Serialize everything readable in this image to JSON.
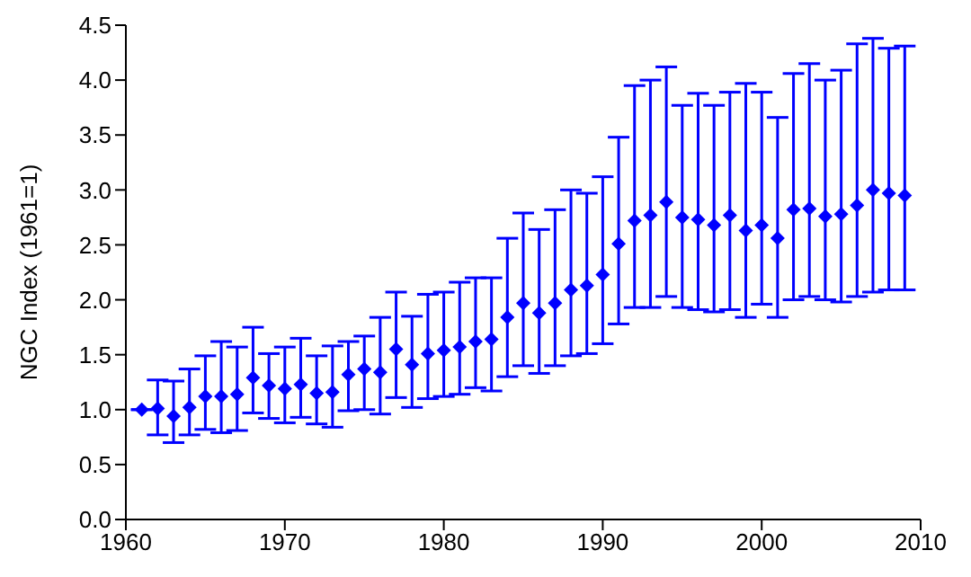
{
  "chart_data": {
    "type": "scatter",
    "ylabel": "NGC Index (1961=1)",
    "marker": "diamond",
    "grid": false,
    "legend": false,
    "x": [
      1961,
      1962,
      1963,
      1964,
      1965,
      1966,
      1967,
      1968,
      1969,
      1970,
      1971,
      1972,
      1973,
      1974,
      1975,
      1976,
      1977,
      1978,
      1979,
      1980,
      1981,
      1982,
      1983,
      1984,
      1985,
      1986,
      1987,
      1988,
      1989,
      1990,
      1991,
      1992,
      1993,
      1994,
      1995,
      1996,
      1997,
      1998,
      1999,
      2000,
      2001,
      2002,
      2003,
      2004,
      2005,
      2006,
      2007,
      2008,
      2009
    ],
    "series": [
      {
        "color": "#0000ff",
        "values": [
          1.0,
          1.01,
          0.94,
          1.02,
          1.12,
          1.12,
          1.14,
          1.29,
          1.22,
          1.19,
          1.23,
          1.15,
          1.16,
          1.32,
          1.37,
          1.34,
          1.55,
          1.41,
          1.51,
          1.54,
          1.57,
          1.62,
          1.64,
          1.84,
          1.97,
          1.88,
          1.97,
          2.09,
          2.13,
          2.23,
          2.51,
          2.72,
          2.77,
          2.89,
          2.75,
          2.73,
          2.68,
          2.77,
          2.63,
          2.68,
          2.56,
          2.82,
          2.83,
          2.76,
          2.78,
          2.86,
          3.0,
          2.97,
          2.95
        ],
        "errors": [
          null,
          [
            0.77,
            1.27
          ],
          [
            0.7,
            1.26
          ],
          [
            0.77,
            1.37
          ],
          [
            0.82,
            1.49
          ],
          [
            0.79,
            1.62
          ],
          [
            0.81,
            1.57
          ],
          [
            0.97,
            1.75
          ],
          [
            0.92,
            1.51
          ],
          [
            0.88,
            1.57
          ],
          [
            0.93,
            1.65
          ],
          [
            0.87,
            1.49
          ],
          [
            0.84,
            1.58
          ],
          [
            0.99,
            1.62
          ],
          [
            1.0,
            1.67
          ],
          [
            0.96,
            1.84
          ],
          [
            1.11,
            2.07
          ],
          [
            1.02,
            1.85
          ],
          [
            1.1,
            2.05
          ],
          [
            1.12,
            2.07
          ],
          [
            1.14,
            2.16
          ],
          [
            1.2,
            2.2
          ],
          [
            1.17,
            2.2
          ],
          [
            1.3,
            2.56
          ],
          [
            1.4,
            2.79
          ],
          [
            1.33,
            2.64
          ],
          [
            1.4,
            2.82
          ],
          [
            1.49,
            3.0
          ],
          [
            1.51,
            2.97
          ],
          [
            1.6,
            3.12
          ],
          [
            1.78,
            3.48
          ],
          [
            1.93,
            3.95
          ],
          [
            1.93,
            4.0
          ],
          [
            2.03,
            4.12
          ],
          [
            1.93,
            3.77
          ],
          [
            1.91,
            3.88
          ],
          [
            1.89,
            3.77
          ],
          [
            1.91,
            3.89
          ],
          [
            1.84,
            3.97
          ],
          [
            1.96,
            3.89
          ],
          [
            1.84,
            3.66
          ],
          [
            2.0,
            4.06
          ],
          [
            2.03,
            4.15
          ],
          [
            2.0,
            4.0
          ],
          [
            1.98,
            4.09
          ],
          [
            2.03,
            4.33
          ],
          [
            2.07,
            4.38
          ],
          [
            2.09,
            4.29
          ],
          [
            2.09,
            4.31
          ]
        ]
      }
    ],
    "xlim": [
      1960,
      2010
    ],
    "xticks": [
      1960,
      1970,
      1980,
      1990,
      2000,
      2010
    ],
    "ylim": [
      0,
      4.5
    ],
    "yticks": [
      {
        "value": 0,
        "label": "0.0"
      },
      {
        "value": 0.5,
        "label": "0.5"
      },
      {
        "value": 1,
        "label": "1.0"
      },
      {
        "value": 1.5,
        "label": "1.5"
      },
      {
        "value": 2,
        "label": "2.0"
      },
      {
        "value": 2.5,
        "label": "2.5"
      },
      {
        "value": 3,
        "label": "3.0"
      },
      {
        "value": 3.5,
        "label": "3.5"
      },
      {
        "value": 4,
        "label": "4.0"
      },
      {
        "value": 4.5,
        "label": "4.5"
      }
    ]
  }
}
